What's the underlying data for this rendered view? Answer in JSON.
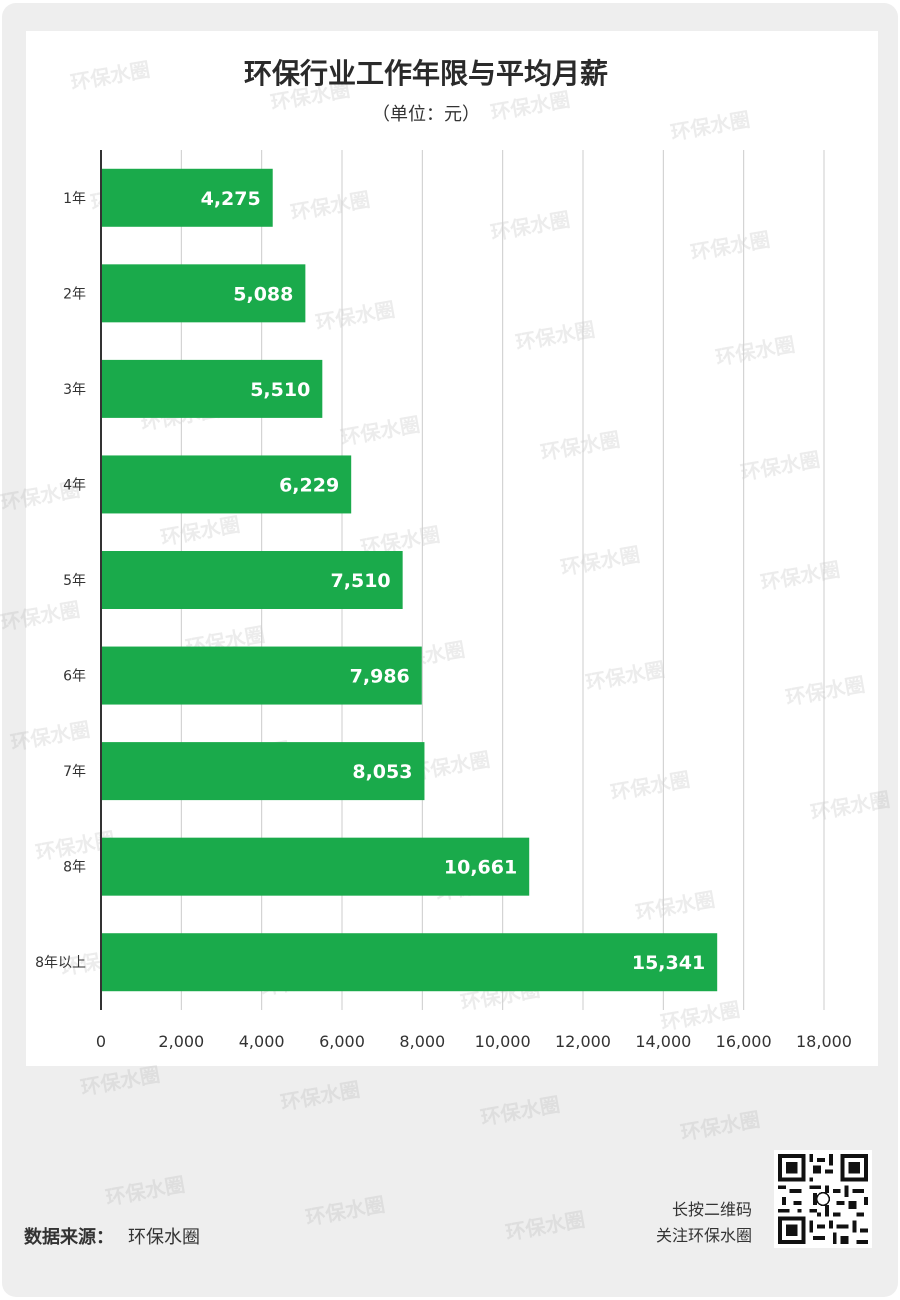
{
  "title": "环保行业工作年限与平均月薪",
  "subtitle": "（单位：元）",
  "chart_data": {
    "type": "bar",
    "orientation": "horizontal",
    "title": "环保行业工作年限与平均月薪",
    "subtitle": "（单位：元）",
    "categories": [
      "1年",
      "2年",
      "3年",
      "4年",
      "5年",
      "6年",
      "7年",
      "8年",
      "8年以上"
    ],
    "values": [
      4275,
      5088,
      5510,
      6229,
      7510,
      7986,
      8053,
      10661,
      15341
    ],
    "value_labels": [
      "4,275",
      "5,088",
      "5,510",
      "6,229",
      "7,510",
      "7,986",
      "8,053",
      "10,661",
      "15,341"
    ],
    "xlim": [
      0,
      18000
    ],
    "xticks": [
      0,
      2000,
      4000,
      6000,
      8000,
      10000,
      12000,
      14000,
      16000,
      18000
    ],
    "xtick_labels": [
      "0",
      "2,000",
      "4,000",
      "6,000",
      "8,000",
      "10,000",
      "12,000",
      "14,000",
      "16,000",
      "18,000"
    ],
    "grid": "vertical",
    "bar_color": "#1aaa4b",
    "xlabel": "",
    "ylabel": ""
  },
  "footer": {
    "source_label": "数据来源：",
    "source_value": "环保水圈",
    "qr_line1": "长按二维码",
    "qr_line2": "关注环保水圈"
  },
  "watermark_text": "环保水圈",
  "colors": {
    "frame": "#eeeeee",
    "bar": "#1aaa4b",
    "grid": "#cccccc",
    "axis": "#333333"
  }
}
